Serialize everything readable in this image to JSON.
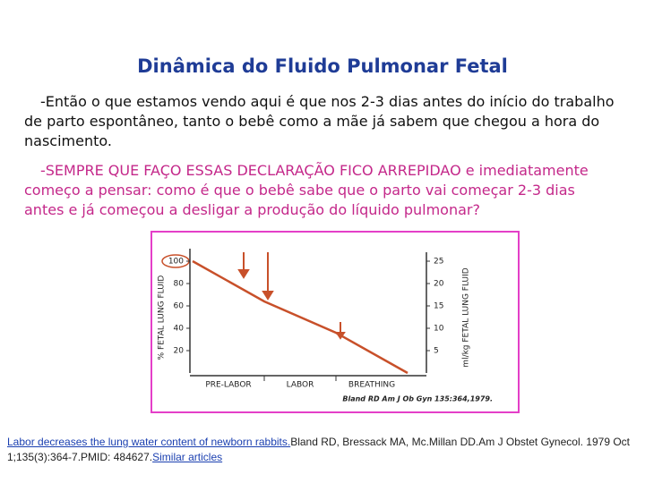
{
  "title": "Dinâmica do Fluido Pulmonar Fetal",
  "paragraphs": [
    "-Então o que estamos  vendo aqui é que nos 2-3 dias antes do início do trabalho de parto espontâneo, tanto o bebê como a mãe já sabem que chegou a hora do nascimento.",
    "-SEMPRE QUE FAÇO ESSAS DECLARAÇÃO FICO ARREPIDAO e imediatamente começo a pensar: como é que o bebê  sabe que o  parto vai começar 2-3 dias antes e já começou a desligar  a produção do líquido pulmonar?"
  ],
  "figure": {
    "type": "line",
    "y_label": "% FETAL LUNG FLUID",
    "y2_label": "ml/kg FETAL LUNG FLUID",
    "ylim": [
      0,
      100
    ],
    "yticks": [
      20,
      40,
      60,
      80,
      100
    ],
    "y2lim": [
      0,
      25
    ],
    "y2ticks": [
      5,
      10,
      15,
      20,
      25
    ],
    "phases": [
      "PRE-LABOR",
      "LABOR",
      "BREATHING"
    ],
    "series": [
      {
        "color": "#c8502a",
        "values": [
          100,
          64,
          36,
          0
        ]
      }
    ],
    "source": "Bland RD Am J Ob Gyn 135:364,1979."
  },
  "citation": {
    "link": "Labor decreases the lung water content of newborn rabbits.",
    "text": "Bland RD, Bressack MA, Mc.Millan DD.Am J Obstet Gynecol. 1979 Oct 1;135(3):364-7.PMID: 484627.",
    "similar": "Similar articles"
  }
}
